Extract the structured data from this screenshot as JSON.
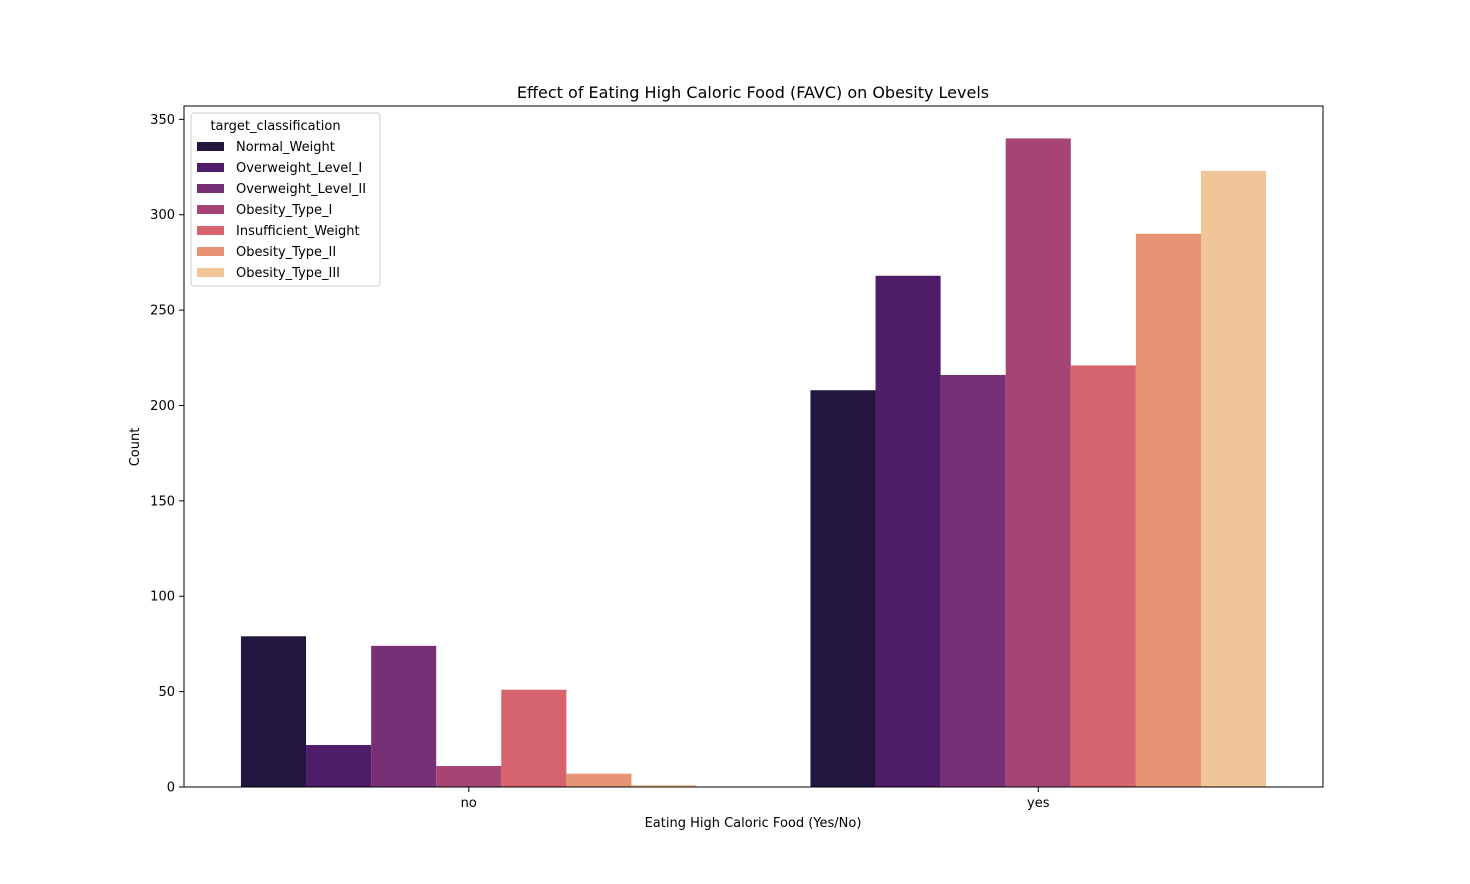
{
  "chart_data": {
    "type": "bar",
    "title": "Effect of Eating High Caloric Food (FAVC) on Obesity Levels",
    "xlabel": "Eating High Caloric Food (Yes/No)",
    "ylabel": "Count",
    "categories": [
      "no",
      "yes"
    ],
    "ylim": [
      0,
      357
    ],
    "yticks": [
      0,
      50,
      100,
      150,
      200,
      250,
      300,
      350
    ],
    "grid": false,
    "legend": {
      "title": "target_classification",
      "placement": "top-left"
    },
    "series": [
      {
        "name": "Normal_Weight",
        "color": "#221540",
        "values": [
          79,
          208
        ]
      },
      {
        "name": "Overweight_Level_I",
        "color": "#4f1c69",
        "values": [
          22,
          268
        ]
      },
      {
        "name": "Overweight_Level_II",
        "color": "#773075",
        "values": [
          74,
          216
        ]
      },
      {
        "name": "Obesity_Type_I",
        "color": "#a64476",
        "values": [
          11,
          340
        ]
      },
      {
        "name": "Insufficient_Weight",
        "color": "#d5646f",
        "values": [
          51,
          221
        ]
      },
      {
        "name": "Obesity_Type_II",
        "color": "#e79475",
        "values": [
          7,
          290
        ]
      },
      {
        "name": "Obesity_Type_III",
        "color": "#f0c597",
        "values": [
          1,
          323
        ]
      }
    ]
  }
}
